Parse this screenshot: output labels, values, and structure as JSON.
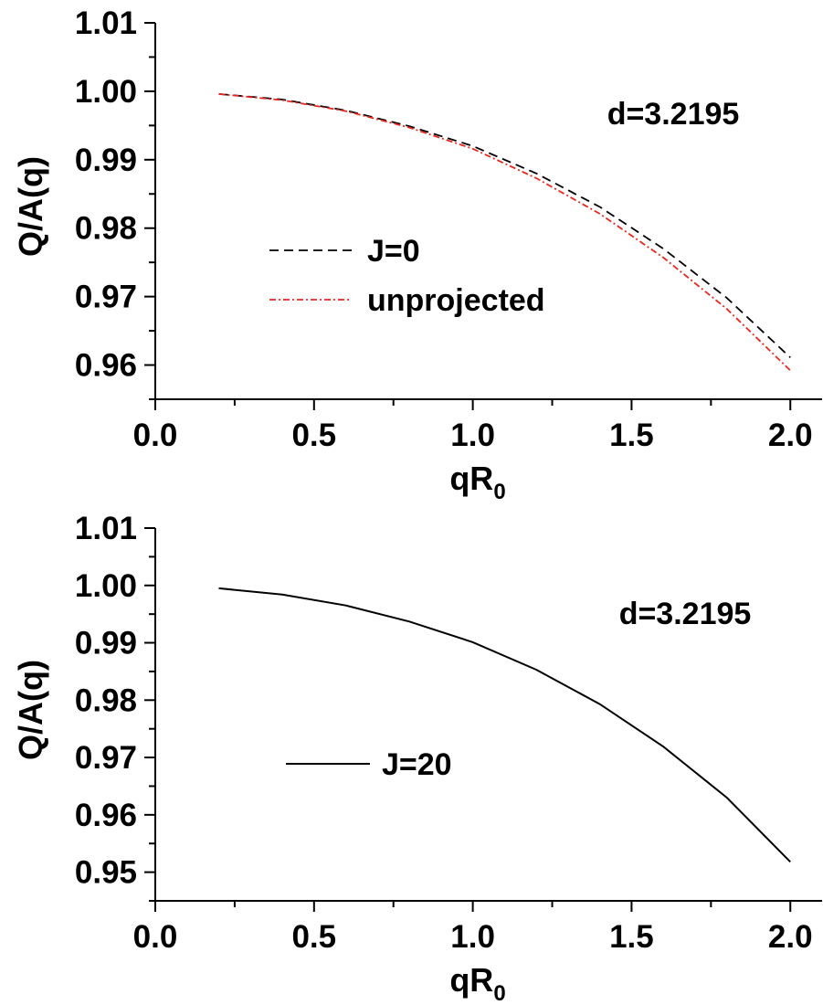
{
  "chart_data": [
    {
      "type": "line",
      "xlabel": "qR",
      "xlabel_sub": "0",
      "ylabel": "Q/A(q)",
      "xlim": [
        0.0,
        2.1
      ],
      "ylim": [
        0.955,
        1.01
      ],
      "xticks": [
        "0.0",
        "0.5",
        "1.0",
        "1.5",
        "2.0"
      ],
      "yticks": [
        "0.96",
        "0.97",
        "0.98",
        "0.99",
        "1.00",
        "1.01"
      ],
      "annotation": "d=3.2195",
      "grid": false,
      "legend_position": "lower-left",
      "series": [
        {
          "name": "J=0",
          "color": "#000000",
          "style": "dashed",
          "x": [
            0.2,
            0.4,
            0.6,
            0.8,
            1.0,
            1.2,
            1.4,
            1.6,
            1.8,
            2.0
          ],
          "y": [
            0.9996,
            0.9988,
            0.9972,
            0.9949,
            0.992,
            0.988,
            0.9831,
            0.977,
            0.9698,
            0.9611
          ]
        },
        {
          "name": "unprojected",
          "color": "#e8281e",
          "style": "dashdot",
          "x": [
            0.2,
            0.4,
            0.6,
            0.8,
            1.0,
            1.2,
            1.4,
            1.6,
            1.8,
            2.0
          ],
          "y": [
            0.9996,
            0.9987,
            0.9971,
            0.9947,
            0.9916,
            0.9873,
            0.9821,
            0.9757,
            0.9682,
            0.9592
          ]
        }
      ]
    },
    {
      "type": "line",
      "xlabel": "qR",
      "xlabel_sub": "0",
      "ylabel": "Q/A(q)",
      "xlim": [
        0.0,
        2.1
      ],
      "ylim": [
        0.945,
        1.01
      ],
      "xticks": [
        "0.0",
        "0.5",
        "1.0",
        "1.5",
        "2.0"
      ],
      "yticks": [
        "0.95",
        "0.96",
        "0.97",
        "0.98",
        "0.99",
        "1.00",
        "1.01"
      ],
      "annotation": "d=3.2195",
      "grid": false,
      "legend_position": "lower-left",
      "series": [
        {
          "name": "J=20",
          "color": "#000000",
          "style": "solid",
          "x": [
            0.2,
            0.4,
            0.6,
            0.8,
            1.0,
            1.2,
            1.4,
            1.6,
            1.8,
            2.0
          ],
          "y": [
            0.9995,
            0.9984,
            0.9965,
            0.9937,
            0.9901,
            0.9853,
            0.9793,
            0.9719,
            0.963,
            0.9518
          ]
        }
      ]
    }
  ]
}
